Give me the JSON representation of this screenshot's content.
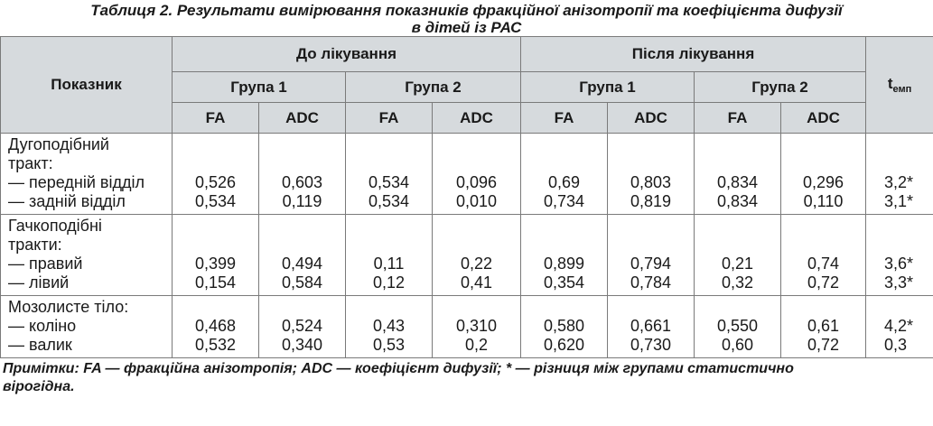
{
  "caption": {
    "line1": "Таблиця 2. Результати вимірювання показників фракційної анізотропії та коефіцієнта дифузії",
    "line2": "в дітей із РАС"
  },
  "header": {
    "indicator": "Показник",
    "before": "До лікування",
    "after": "Після лікування",
    "group1": "Група 1",
    "group2": "Група 2",
    "fa": "FA",
    "adc": "ADC",
    "t_main": "t",
    "t_sub": "емп"
  },
  "rows": [
    {
      "title": [
        "Дугоподібний",
        "тракт:"
      ],
      "sub": [
        {
          "label": "— передній відділ",
          "values": [
            "0,526",
            "0,603",
            "0,534",
            "0,096",
            "0,69",
            "0,803",
            "0,834",
            "0,296"
          ],
          "t": "3,2*"
        },
        {
          "label": "— задній відділ",
          "values": [
            "0,534",
            "0,119",
            "0,534",
            "0,010",
            "0,734",
            "0,819",
            "0,834",
            "0,110"
          ],
          "t": "3,1*"
        }
      ]
    },
    {
      "title": [
        "Гачкоподібні",
        "тракти:"
      ],
      "sub": [
        {
          "label": "— правий",
          "values": [
            "0,399",
            "0,494",
            "0,11",
            "0,22",
            "0,899",
            "0,794",
            "0,21",
            "0,74"
          ],
          "t": "3,6*"
        },
        {
          "label": "— лівий",
          "values": [
            "0,154",
            "0,584",
            "0,12",
            "0,41",
            "0,354",
            "0,784",
            "0,32",
            "0,72"
          ],
          "t": "3,3*"
        }
      ]
    },
    {
      "title": [
        "Мозолисте тіло:"
      ],
      "sub": [
        {
          "label": "— коліно",
          "values": [
            "0,468",
            "0,524",
            "0,43",
            "0,310",
            "0,580",
            "0,661",
            "0,550",
            "0,61"
          ],
          "t": "4,2*"
        },
        {
          "label": "— валик",
          "values": [
            "0,532",
            "0,340",
            "0,53",
            "0,2",
            "0,620",
            "0,730",
            "0,60",
            "0,72"
          ],
          "t": "0,3"
        }
      ]
    }
  ],
  "note": {
    "line1": "Примітки: FA — фракційна анізотропія; ADC — коефіцієнт дифузії; * — різниця між групами статистично",
    "line2": "вірогідна."
  }
}
